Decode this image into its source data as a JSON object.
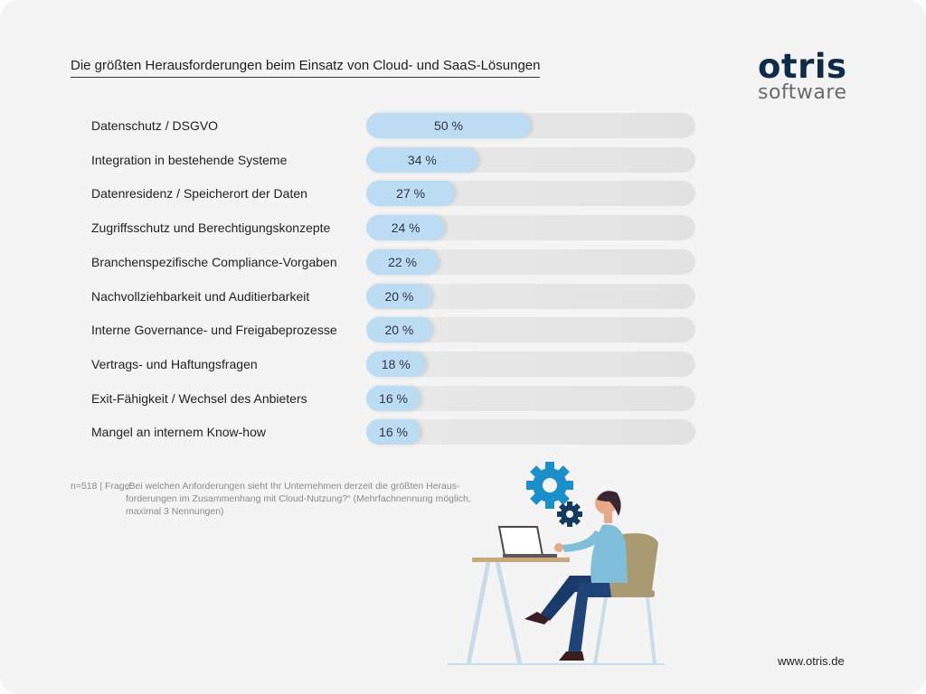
{
  "title": "Die größten Herausforderungen beim Einsatz von Cloud- und SaaS-Lösungen",
  "logo": {
    "line1": "otris",
    "line2": "software"
  },
  "chart_data": {
    "type": "bar",
    "orientation": "horizontal",
    "title": "Die größten Herausforderungen beim Einsatz von Cloud- und SaaS-Lösungen",
    "categories": [
      "Datenschutz / DSGVO",
      "Integration in bestehende Systeme",
      "Datenresidenz / Speicherort der Daten",
      "Zugriffsschutz und Berechtigungskonzepte",
      "Branchenspezifische Compliance-Vorgaben",
      "Nachvollziehbarkeit und Auditierbarkeit",
      "Interne Governance- und Freigabeprozesse",
      "Vertrags- und Haftungsfragen",
      "Exit-Fähigkeit / Wechsel des Anbieters",
      "Mangel an internem Know-how"
    ],
    "values": [
      50,
      34,
      27,
      24,
      22,
      20,
      20,
      18,
      16,
      16
    ],
    "value_labels": [
      "50 %",
      "34 %",
      "27 %",
      "24 %",
      "22 %",
      "20 %",
      "20 %",
      "18 %",
      "16 %",
      "16 %"
    ],
    "xlim": [
      0,
      100
    ],
    "unit": "%",
    "grid": false,
    "colors": {
      "fill": "#bcdcf3",
      "track": "#e6e6e6"
    }
  },
  "footnote": {
    "prefix": "n=518 | Frage:",
    "text": "„Bei welchen Anforderungen sieht Ihr Unternehmen derzeit die größten Heraus-forderungen im Zusammenhang mit Cloud-Nutzung?“ (Mehrfachnennung möglich, maximal 3 Nennungen)"
  },
  "website": "www.otris.de",
  "colors": {
    "accent_blue": "#1b8fc9",
    "brand_navy": "#0f2b4a"
  },
  "illustration": {
    "icons": [
      "gear-icon",
      "gear-icon"
    ]
  }
}
